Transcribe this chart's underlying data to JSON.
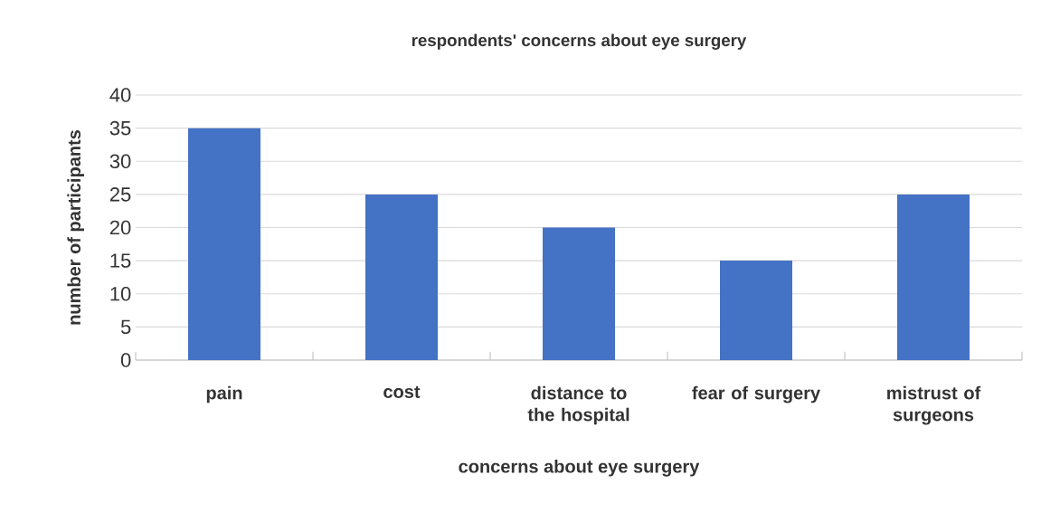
{
  "chart_data": {
    "type": "bar",
    "title": "respondents' concerns about eye surgery",
    "xlabel": "concerns about eye surgery",
    "ylabel": "number of participants",
    "categories": [
      "pain",
      "cost",
      "distance to the hospital",
      "fear of surgery",
      "mistrust of surgeons"
    ],
    "values": [
      35,
      25,
      20,
      15,
      25
    ],
    "color": "#4472c4",
    "ylim": [
      0,
      40
    ],
    "yticks": [
      0,
      5,
      10,
      15,
      20,
      25,
      30,
      35,
      40
    ],
    "grid": "y"
  }
}
